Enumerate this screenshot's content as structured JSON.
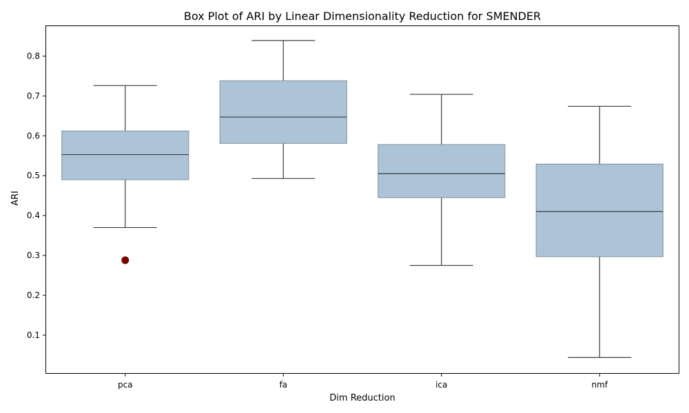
{
  "chart_data": {
    "type": "box",
    "title": "Box Plot of ARI by Linear Dimensionality Reduction for SMENDER",
    "xlabel": "Dim Reduction",
    "ylabel": "ARI",
    "categories": [
      "pca",
      "fa",
      "ica",
      "nmf"
    ],
    "ylim": [
      0.005,
      0.875
    ],
    "yticks": [
      0.1,
      0.2,
      0.3,
      0.4,
      0.5,
      0.6,
      0.7,
      0.8
    ],
    "ytick_labels": [
      "0.1",
      "0.2",
      "0.3",
      "0.4",
      "0.5",
      "0.6",
      "0.7",
      "0.8"
    ],
    "grid": false,
    "boxes": [
      {
        "category": "pca",
        "whisker_low": 0.37,
        "q1": 0.49,
        "median": 0.553,
        "q3": 0.612,
        "whisker_high": 0.726,
        "outliers": [
          0.288
        ]
      },
      {
        "category": "fa",
        "whisker_low": 0.493,
        "q1": 0.581,
        "median": 0.647,
        "q3": 0.738,
        "whisker_high": 0.839,
        "outliers": []
      },
      {
        "category": "ica",
        "whisker_low": 0.275,
        "q1": 0.445,
        "median": 0.505,
        "q3": 0.578,
        "whisker_high": 0.704,
        "outliers": []
      },
      {
        "category": "nmf",
        "whisker_low": 0.044,
        "q1": 0.297,
        "median": 0.41,
        "q3": 0.529,
        "whisker_high": 0.674,
        "outliers": []
      }
    ],
    "colors": {
      "box_fill": "#adc4d8",
      "box_edge": "#8c9aa6",
      "line": "#3a3a3a",
      "outlier": "#7a0000",
      "axes": "#000000"
    }
  }
}
